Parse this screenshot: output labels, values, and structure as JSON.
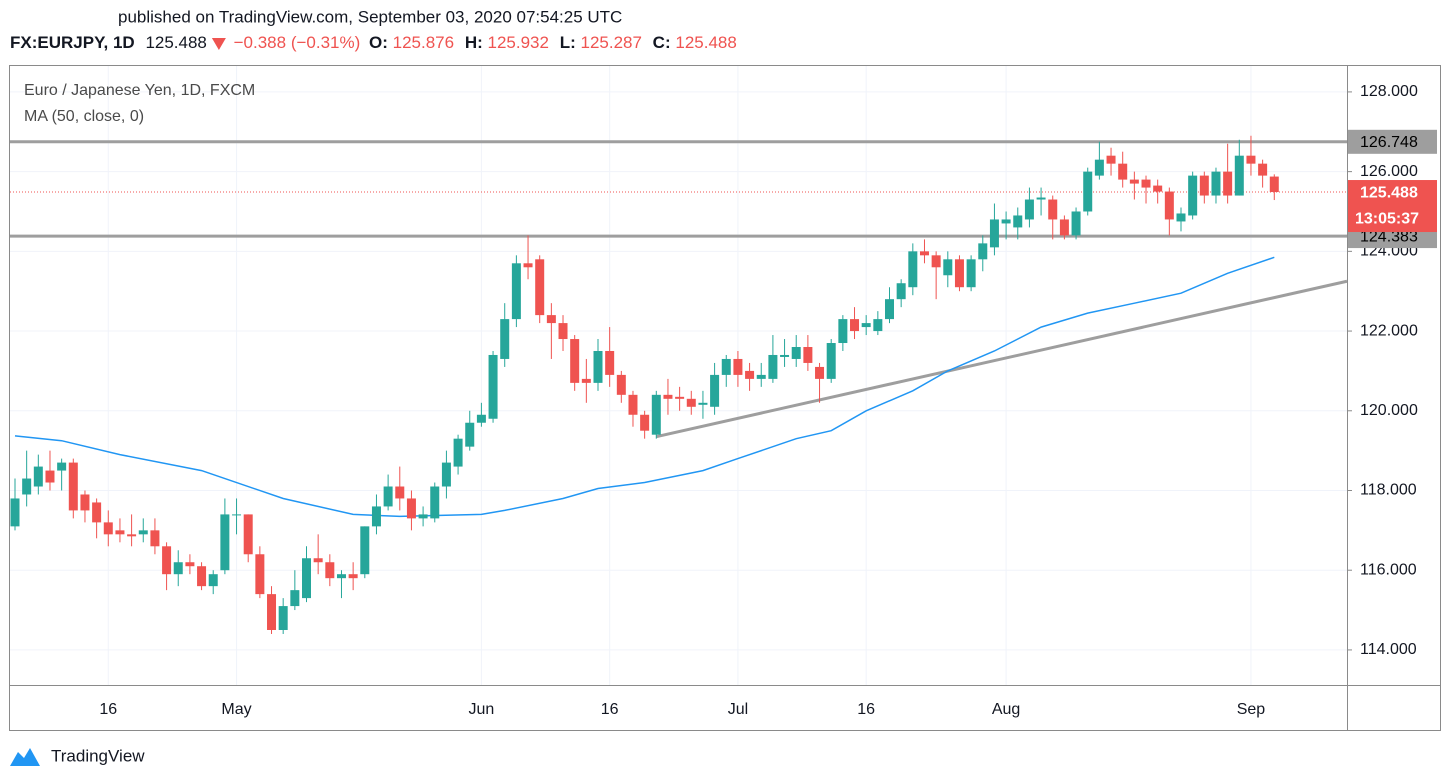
{
  "header": {
    "published": "published on TradingView.com, September 03, 2020 07:54:25 UTC",
    "symbol": "FX:EURJPY, 1D",
    "last": "125.488",
    "change": "−0.388 (−0.31%)",
    "ohlc": [
      {
        "label": "O:",
        "value": "125.876"
      },
      {
        "label": "H:",
        "value": "125.932"
      },
      {
        "label": "L:",
        "value": "125.287"
      },
      {
        "label": "C:",
        "value": "125.488"
      }
    ]
  },
  "footer": {
    "brand": "TradingView"
  },
  "chart_data": {
    "type": "candlestick",
    "title": "Euro / Japanese Yen, 1D, FXCM",
    "categories": [
      null,
      null,
      null,
      null,
      null,
      null,
      null,
      null,
      "16",
      null,
      null,
      null,
      null,
      null,
      null,
      null,
      null,
      null,
      null,
      "May",
      null,
      null,
      null,
      null,
      null,
      null,
      null,
      null,
      null,
      null,
      null,
      null,
      null,
      null,
      null,
      null,
      null,
      null,
      null,
      null,
      "Jun",
      null,
      null,
      null,
      null,
      null,
      null,
      null,
      null,
      null,
      null,
      "16",
      null,
      null,
      null,
      null,
      null,
      null,
      null,
      null,
      null,
      null,
      "Jul",
      null,
      null,
      null,
      null,
      null,
      null,
      null,
      null,
      null,
      null,
      "16",
      null,
      null,
      null,
      null,
      null,
      null,
      null,
      null,
      null,
      null,
      null,
      "Aug",
      null,
      null,
      null,
      null,
      null,
      null,
      null,
      null,
      null,
      null,
      null,
      null,
      null,
      null,
      null,
      null,
      null,
      null,
      null,
      null,
      "Sep",
      null,
      null
    ],
    "open": [
      117.1,
      117.9,
      118.1,
      118.5,
      118.5,
      118.7,
      117.9,
      117.7,
      117.2,
      117.0,
      116.9,
      116.9,
      117.0,
      116.6,
      115.9,
      116.2,
      116.1,
      115.6,
      116.0,
      117.4,
      117.4,
      116.4,
      115.4,
      114.5,
      115.1,
      115.3,
      116.3,
      116.2,
      115.8,
      115.9,
      115.9,
      117.1,
      117.6,
      118.1,
      117.8,
      117.3,
      117.3,
      118.1,
      118.6,
      119.1,
      119.7,
      119.8,
      121.3,
      122.3,
      123.7,
      123.8,
      122.4,
      122.2,
      121.8,
      120.8,
      120.7,
      121.5,
      120.9,
      120.4,
      119.9,
      119.4,
      120.4,
      120.35,
      120.3,
      120.15,
      120.1,
      120.9,
      121.3,
      121.0,
      120.8,
      120.8,
      121.35,
      121.3,
      121.6,
      121.1,
      120.8,
      121.7,
      122.3,
      122.1,
      122.0,
      122.3,
      122.8,
      123.1,
      124.0,
      123.9,
      123.4,
      123.8,
      123.1,
      123.8,
      124.1,
      124.7,
      124.6,
      124.8,
      125.3,
      125.3,
      124.8,
      124.4,
      125.0,
      125.9,
      126.4,
      126.2,
      125.8,
      125.8,
      125.65,
      125.5,
      124.75,
      124.9,
      125.9,
      125.4,
      126.0,
      125.4,
      126.4,
      126.2,
      125.876
    ],
    "high": [
      118.3,
      119.0,
      118.9,
      119.0,
      118.8,
      118.8,
      118.0,
      117.8,
      117.5,
      117.3,
      117.4,
      117.3,
      117.3,
      116.7,
      116.5,
      116.4,
      116.2,
      116.0,
      117.8,
      117.8,
      117.4,
      116.6,
      115.6,
      115.3,
      116.0,
      116.6,
      116.9,
      116.4,
      116.0,
      116.2,
      117.1,
      117.9,
      118.4,
      118.6,
      118.0,
      117.6,
      118.2,
      119.0,
      119.4,
      120.0,
      120.2,
      121.5,
      122.7,
      123.9,
      124.4,
      123.9,
      122.7,
      122.4,
      121.9,
      121.3,
      121.8,
      122.1,
      121.0,
      120.5,
      120.0,
      120.5,
      120.8,
      120.6,
      120.5,
      120.5,
      121.2,
      121.4,
      121.5,
      121.2,
      121.2,
      121.9,
      121.8,
      121.9,
      121.9,
      121.2,
      121.8,
      122.4,
      122.6,
      122.4,
      122.5,
      123.1,
      123.3,
      124.2,
      124.3,
      124.0,
      124.0,
      123.9,
      123.9,
      124.4,
      125.2,
      125.0,
      125.1,
      125.6,
      125.6,
      125.4,
      124.9,
      125.1,
      126.1,
      126.75,
      126.6,
      126.5,
      126.0,
      125.9,
      125.8,
      125.6,
      125.1,
      126.0,
      126.0,
      126.1,
      126.7,
      126.8,
      126.9,
      126.3,
      125.932
    ],
    "low": [
      117.0,
      117.6,
      117.9,
      118.0,
      118.0,
      117.3,
      117.2,
      116.8,
      116.6,
      116.7,
      116.6,
      116.7,
      116.4,
      115.5,
      115.6,
      115.9,
      115.5,
      115.4,
      115.9,
      116.9,
      116.2,
      115.3,
      114.4,
      114.4,
      115.0,
      115.2,
      115.9,
      115.6,
      115.3,
      115.5,
      115.8,
      116.9,
      117.5,
      117.5,
      117.0,
      117.1,
      117.2,
      117.8,
      118.4,
      119.0,
      119.6,
      119.7,
      121.1,
      122.1,
      123.3,
      122.2,
      121.3,
      121.5,
      120.5,
      120.2,
      120.5,
      120.6,
      120.2,
      119.6,
      119.3,
      119.3,
      119.9,
      120.0,
      119.9,
      119.8,
      119.9,
      120.6,
      120.6,
      120.5,
      120.6,
      120.7,
      121.1,
      121.1,
      121.0,
      120.2,
      120.7,
      121.5,
      121.8,
      121.9,
      121.9,
      122.2,
      122.6,
      122.9,
      123.7,
      122.8,
      123.1,
      123.0,
      123.0,
      123.5,
      123.9,
      124.3,
      124.3,
      124.6,
      124.9,
      124.3,
      124.3,
      124.3,
      124.9,
      125.8,
      125.9,
      125.6,
      125.3,
      125.2,
      125.2,
      124.4,
      124.5,
      124.8,
      125.2,
      125.2,
      125.2,
      125.4,
      125.9,
      125.6,
      125.287
    ],
    "close": [
      117.8,
      118.3,
      118.6,
      118.2,
      118.7,
      117.5,
      117.5,
      117.2,
      116.9,
      116.9,
      116.85,
      117.0,
      116.6,
      115.9,
      116.2,
      116.1,
      115.6,
      115.9,
      117.4,
      117.4,
      116.4,
      115.4,
      114.5,
      115.1,
      115.5,
      116.3,
      116.2,
      115.8,
      115.9,
      115.8,
      117.1,
      117.6,
      118.1,
      117.8,
      117.3,
      117.4,
      118.1,
      118.7,
      119.3,
      119.7,
      119.9,
      121.4,
      122.3,
      123.7,
      123.6,
      122.4,
      122.2,
      121.8,
      120.7,
      120.7,
      121.5,
      120.9,
      120.4,
      119.9,
      119.5,
      120.4,
      120.3,
      120.3,
      120.1,
      120.2,
      120.9,
      121.3,
      120.9,
      120.8,
      120.9,
      121.4,
      121.4,
      121.6,
      121.2,
      120.8,
      121.7,
      122.3,
      122.0,
      122.2,
      122.3,
      122.8,
      123.2,
      124.0,
      123.9,
      123.6,
      123.8,
      123.1,
      123.8,
      124.2,
      124.8,
      124.8,
      124.9,
      125.3,
      125.35,
      124.8,
      124.4,
      125.0,
      126.0,
      126.3,
      126.2,
      125.8,
      125.7,
      125.6,
      125.5,
      124.8,
      124.95,
      125.9,
      125.4,
      126.0,
      125.4,
      126.4,
      126.2,
      125.9,
      125.488
    ],
    "up_color": "#26a69a",
    "down_color": "#ef5350",
    "ylim": [
      113.12,
      128.65
    ],
    "yticks": [
      {
        "value": 114,
        "label": "114.000"
      },
      {
        "value": 116,
        "label": "116.000"
      },
      {
        "value": 118,
        "label": "118.000"
      },
      {
        "value": 120,
        "label": "120.000"
      },
      {
        "value": 122,
        "label": "122.000"
      },
      {
        "value": 124,
        "label": "124.000"
      },
      {
        "value": 126,
        "label": "126.000"
      },
      {
        "value": 128,
        "label": "128.000"
      }
    ],
    "grid": true,
    "series": [
      {
        "name": "MA (50, close, 0)",
        "color": "#2196f3",
        "x": [
          0,
          4,
          9,
          16,
          23,
          29,
          33,
          40,
          42,
          47,
          50,
          54,
          59,
          62,
          67,
          70,
          73,
          77,
          80,
          84,
          88,
          92,
          96,
          100,
          104,
          108
        ],
        "values": [
          119.37,
          119.25,
          118.9,
          118.5,
          117.8,
          117.4,
          117.35,
          117.4,
          117.5,
          117.8,
          118.05,
          118.2,
          118.5,
          118.8,
          119.3,
          119.5,
          120.0,
          120.5,
          121.0,
          121.5,
          122.1,
          122.45,
          122.7,
          122.95,
          123.45,
          123.85
        ]
      }
    ],
    "levels": [
      126.748,
      124.383
    ],
    "level_color": "#9e9e9e",
    "last_price": {
      "value": 125.488,
      "countdown": "13:05:37"
    },
    "trendlines": [
      {
        "x": [
          55,
          114.25
        ],
        "values": [
          119.35,
          123.25
        ]
      }
    ]
  }
}
